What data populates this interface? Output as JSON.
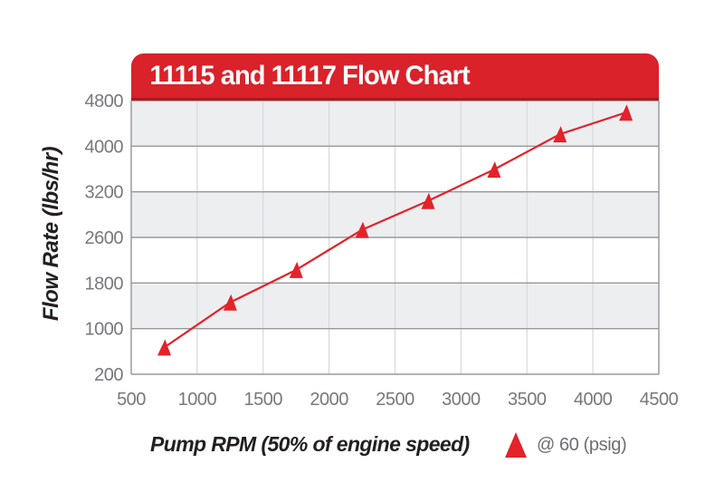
{
  "chart_data": {
    "type": "line",
    "title": "11115 and 11117 Flow Chart",
    "xlabel": "Pump RPM (50% of engine speed)",
    "ylabel": "Flow Rate (lbs/hr)",
    "x_ticks": [
      500,
      1000,
      1500,
      2000,
      2500,
      3000,
      3500,
      4000,
      4500
    ],
    "y_ticks": [
      200,
      1000,
      1800,
      2600,
      3200,
      4000,
      4800
    ],
    "y_scale_note": "y tick values evenly spaced on axis (non-linear value scale)",
    "xlim": [
      500,
      4500
    ],
    "grid": {
      "vertical_gridlines": true,
      "horizontal_band_rows": true,
      "legend_position": "bottom-right"
    },
    "series": [
      {
        "name": "@ 60 (psig)",
        "marker": "triangle-up",
        "points": [
          {
            "rpm": 750,
            "flow": 670
          },
          {
            "rpm": 1250,
            "flow": 1460
          },
          {
            "rpm": 1750,
            "flow": 2030
          },
          {
            "rpm": 2250,
            "flow": 2700
          },
          {
            "rpm": 2750,
            "flow": 3080
          },
          {
            "rpm": 3250,
            "flow": 3590
          },
          {
            "rpm": 3750,
            "flow": 4210
          },
          {
            "rpm": 4250,
            "flow": 4590
          }
        ]
      }
    ],
    "colors": {
      "banner_red": "#d9222a",
      "banner_red_dark_edge": "#a91b21",
      "series_red": "#e4222a",
      "band_gray": "#edeef0",
      "band_white": "#ffffff",
      "vertical_grid": "#d7d8da",
      "axis_line": "#97989b",
      "tick_label_text": "#77787b",
      "axis_title_text": "#231f20",
      "title_text": "#ffffff",
      "legend_text": "#6d6e71"
    }
  }
}
